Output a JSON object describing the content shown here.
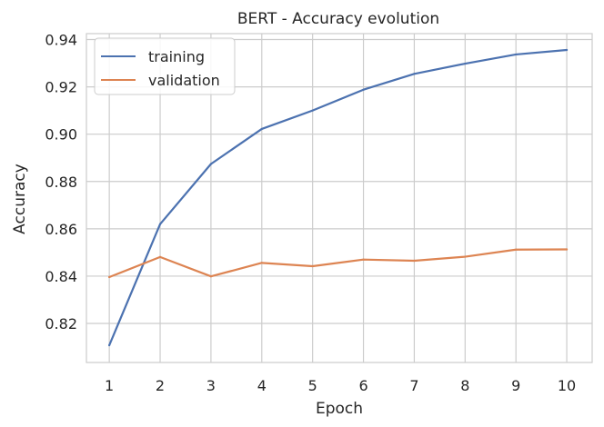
{
  "chart_data": {
    "type": "line",
    "title": "BERT - Accuracy evolution",
    "xlabel": "Epoch",
    "ylabel": "Accuracy",
    "x": [
      1,
      2,
      3,
      4,
      5,
      6,
      7,
      8,
      9,
      10
    ],
    "x_ticks": [
      "1",
      "2",
      "3",
      "4",
      "5",
      "6",
      "7",
      "8",
      "9",
      "10"
    ],
    "xlim": [
      0.55,
      10.5
    ],
    "ylim": [
      0.8035,
      0.9425
    ],
    "y_ticks": [
      0.82,
      0.84,
      0.86,
      0.88,
      0.9,
      0.92,
      0.94
    ],
    "y_tick_labels": [
      "0.82",
      "0.84",
      "0.86",
      "0.88",
      "0.90",
      "0.92",
      "0.94"
    ],
    "grid": true,
    "legend_position": "top-left",
    "series": [
      {
        "name": "training",
        "color": "#4c72b0",
        "values": [
          0.8108,
          0.862,
          0.8874,
          0.9022,
          0.91,
          0.9188,
          0.9255,
          0.9298,
          0.9337,
          0.9356
        ]
      },
      {
        "name": "validation",
        "color": "#dd8452",
        "values": [
          0.8396,
          0.8481,
          0.8399,
          0.8456,
          0.8442,
          0.847,
          0.8465,
          0.8482,
          0.8512,
          0.8513
        ]
      }
    ]
  }
}
